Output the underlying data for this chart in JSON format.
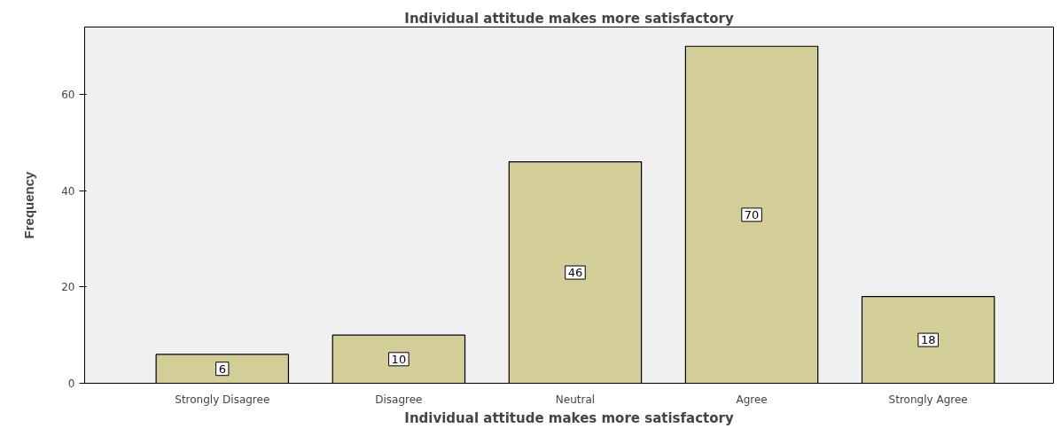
{
  "chart_data": {
    "type": "bar",
    "title": "Individual attitude makes more satisfactory",
    "xlabel": "Individual attitude makes more satisfactory",
    "ylabel": "Frequency",
    "categories": [
      "Strongly Disagree",
      "Disagree",
      "Neutral",
      "Agree",
      "Strongly Agree"
    ],
    "values": [
      6,
      10,
      46,
      70,
      18
    ],
    "color": "#d3ce97",
    "ylim": [
      0,
      74
    ],
    "yticks": [
      0,
      20,
      40,
      60
    ],
    "data_labels": true
  }
}
